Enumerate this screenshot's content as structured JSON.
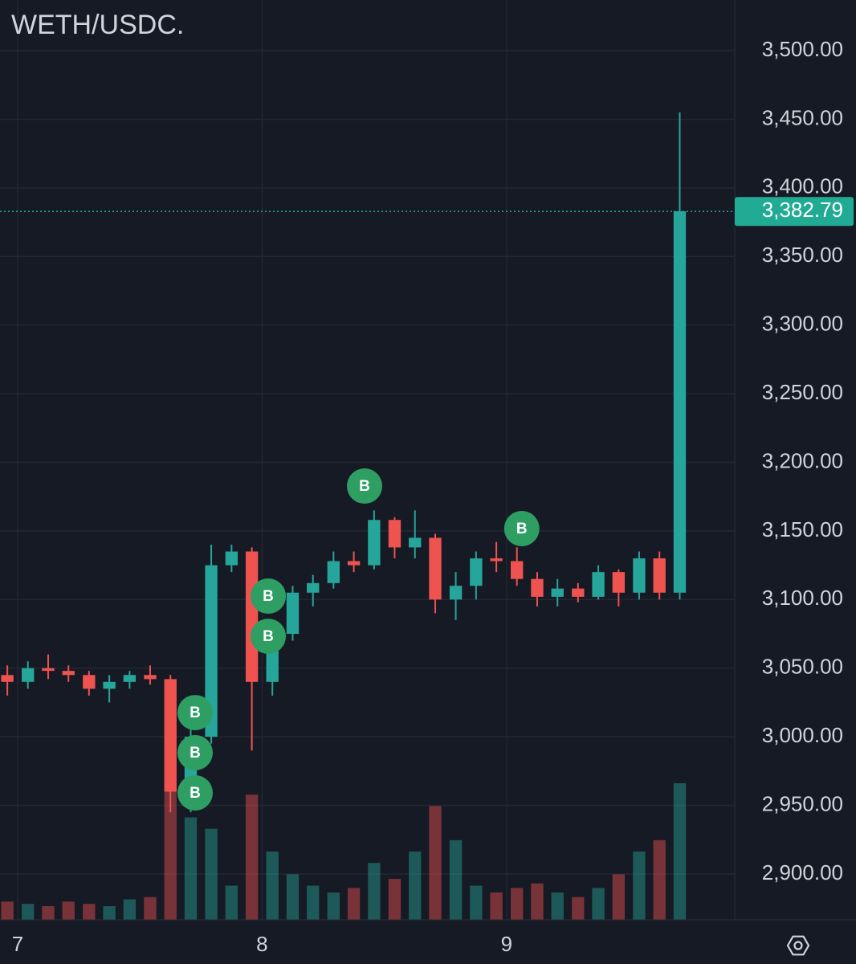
{
  "chart_data": {
    "type": "candlestick",
    "title": "WETH/USDC.",
    "x": [
      6.958,
      7.042,
      7.125,
      7.208,
      7.292,
      7.375,
      7.458,
      7.542,
      7.625,
      7.708,
      7.792,
      7.875,
      7.958,
      8.042,
      8.125,
      8.208,
      8.292,
      8.375,
      8.458,
      8.542,
      8.625,
      8.708,
      8.792,
      8.875,
      8.958,
      9.042,
      9.125,
      9.208,
      9.292,
      9.375,
      9.458,
      9.542,
      9.625,
      9.708
    ],
    "open": [
      3045,
      3040,
      3050,
      3048,
      3045,
      3035,
      3040,
      3045,
      3042,
      2960,
      3000,
      3125,
      3135,
      3040,
      3075,
      3105,
      3112,
      3128,
      3125,
      3158,
      3138,
      3145,
      3100,
      3110,
      3130,
      3128,
      3115,
      3102,
      3108,
      3102,
      3120,
      3105,
      3130,
      3105
    ],
    "high": [
      3052,
      3055,
      3060,
      3052,
      3048,
      3045,
      3048,
      3052,
      3045,
      3010,
      3140,
      3140,
      3138,
      3080,
      3110,
      3118,
      3135,
      3135,
      3165,
      3160,
      3165,
      3148,
      3120,
      3135,
      3142,
      3138,
      3120,
      3115,
      3112,
      3125,
      3122,
      3135,
      3135,
      3455
    ],
    "low": [
      3030,
      3035,
      3042,
      3040,
      3030,
      3025,
      3035,
      3038,
      2945,
      2945,
      2995,
      3120,
      2990,
      3030,
      3070,
      3095,
      3108,
      3120,
      3122,
      3130,
      3130,
      3090,
      3085,
      3100,
      3120,
      3110,
      3095,
      3095,
      3098,
      3100,
      3095,
      3100,
      3100,
      3100
    ],
    "close": [
      3040,
      3050,
      3048,
      3045,
      3035,
      3040,
      3045,
      3042,
      2960,
      3000,
      3125,
      3135,
      3040,
      3075,
      3105,
      3112,
      3128,
      3125,
      3158,
      3138,
      3145,
      3100,
      3110,
      3130,
      3128,
      3115,
      3102,
      3108,
      3102,
      3120,
      3105,
      3130,
      3105,
      3383
    ],
    "volume": [
      8,
      7,
      6,
      8,
      7,
      6,
      9,
      10,
      60,
      45,
      40,
      15,
      55,
      30,
      20,
      15,
      12,
      14,
      25,
      18,
      30,
      50,
      35,
      15,
      12,
      14,
      16,
      12,
      10,
      14,
      20,
      30,
      35,
      60
    ],
    "up_color": "#26a69a",
    "down_color": "#ef5350",
    "xlim": [
      6.928,
      9.933
    ],
    "xticks": [
      7,
      8,
      9
    ],
    "ylim": [
      2866.6,
      3536.9
    ],
    "yticks": [
      {
        "value": 2900,
        "label": "2,900.00"
      },
      {
        "value": 2950,
        "label": "2,950.00"
      },
      {
        "value": 3000,
        "label": "3,000.00"
      },
      {
        "value": 3050,
        "label": "3,050.00"
      },
      {
        "value": 3100,
        "label": "3,100.00"
      },
      {
        "value": 3150,
        "label": "3,150.00"
      },
      {
        "value": 3200,
        "label": "3,200.00"
      },
      {
        "value": 3250,
        "label": "3,250.00"
      },
      {
        "value": 3300,
        "label": "3,300.00"
      },
      {
        "value": 3350,
        "label": "3,350.00"
      },
      {
        "value": 3400,
        "label": "3,400.00"
      },
      {
        "value": 3450,
        "label": "3,450.00"
      },
      {
        "value": 3500,
        "label": "3,500.00"
      }
    ],
    "grid": true,
    "last_price": 3382.79,
    "last_price_label": "3,382.79",
    "last_price_color": "#22ab94",
    "markers": [
      {
        "x": 7.726,
        "y": 3017.6,
        "label": "B"
      },
      {
        "x": 7.726,
        "y": 2988.4,
        "label": "B"
      },
      {
        "x": 7.726,
        "y": 2959.1,
        "label": "B"
      },
      {
        "x": 8.025,
        "y": 3102.5,
        "label": "B"
      },
      {
        "x": 8.025,
        "y": 3073.2,
        "label": "B"
      },
      {
        "x": 8.419,
        "y": 3182.7,
        "label": "B"
      },
      {
        "x": 9.062,
        "y": 3151.7,
        "label": "B"
      }
    ],
    "marker_color": "#2e9e63"
  }
}
